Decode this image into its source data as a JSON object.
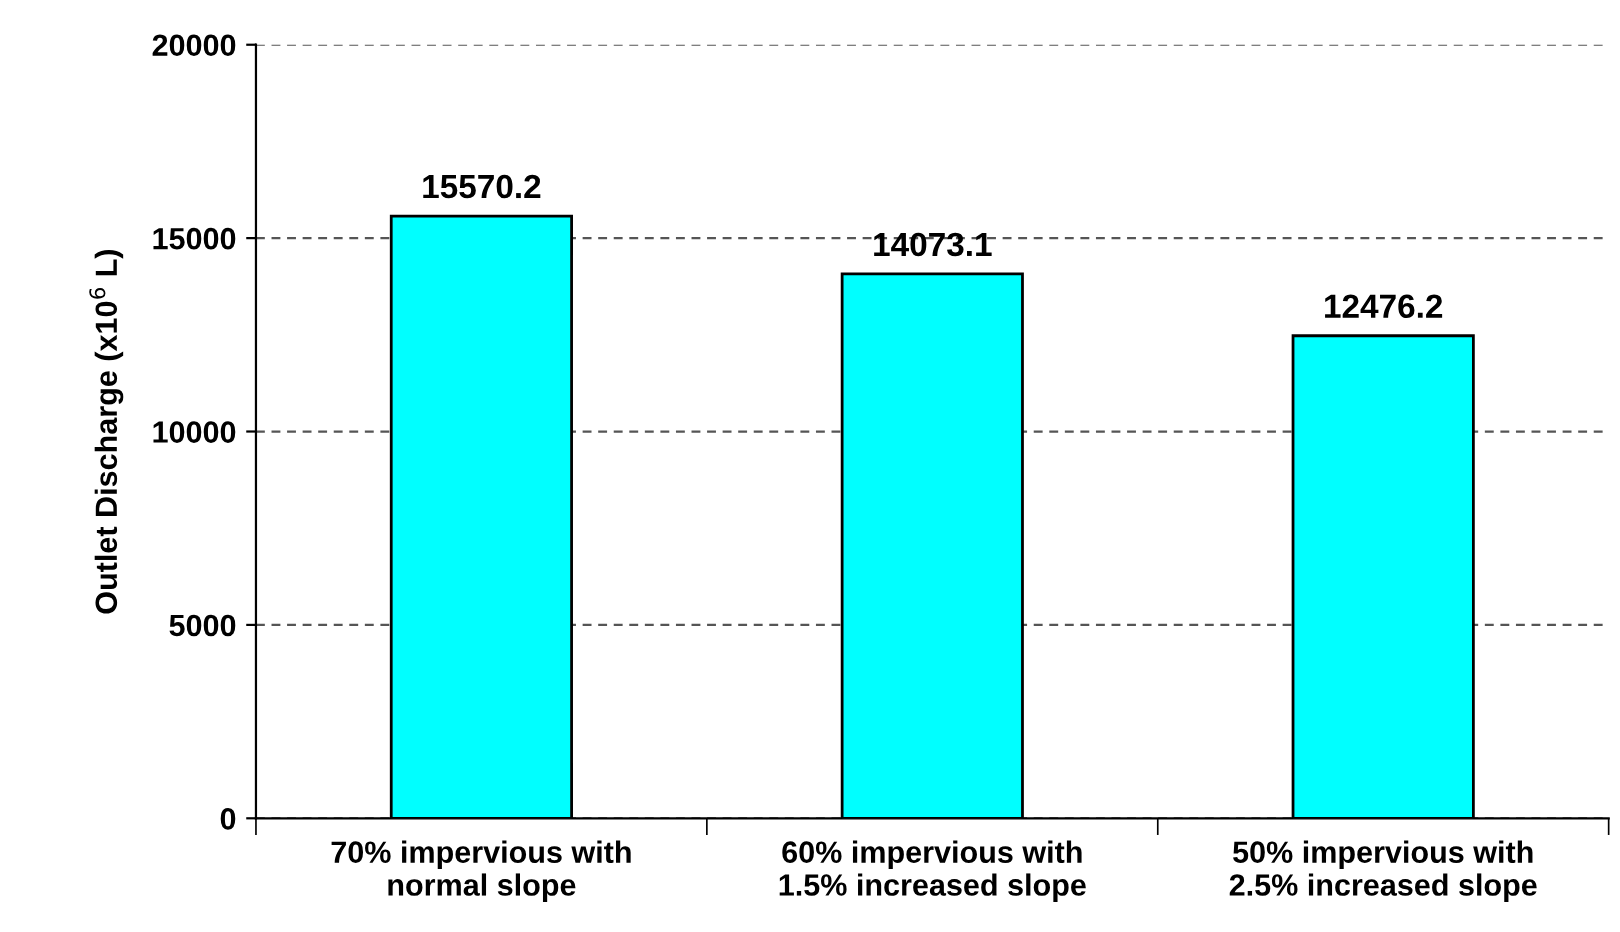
{
  "chart_data": {
    "type": "bar",
    "ylabel": "Outlet Discharge (x10$^{6}$ L)",
    "categories": [
      "70% impervious with\nnormal slope",
      "60% impervious with\n1.5% increased slope",
      "50% impervious with\n2.5% increased slope"
    ],
    "values": [
      15570.2,
      14073.1,
      12476.2
    ],
    "color": "#00ffff",
    "ylim": [
      0,
      20000
    ],
    "yticks": [
      0,
      5000,
      10000,
      15000,
      20000
    ],
    "grid": "y",
    "data_labels": true
  }
}
